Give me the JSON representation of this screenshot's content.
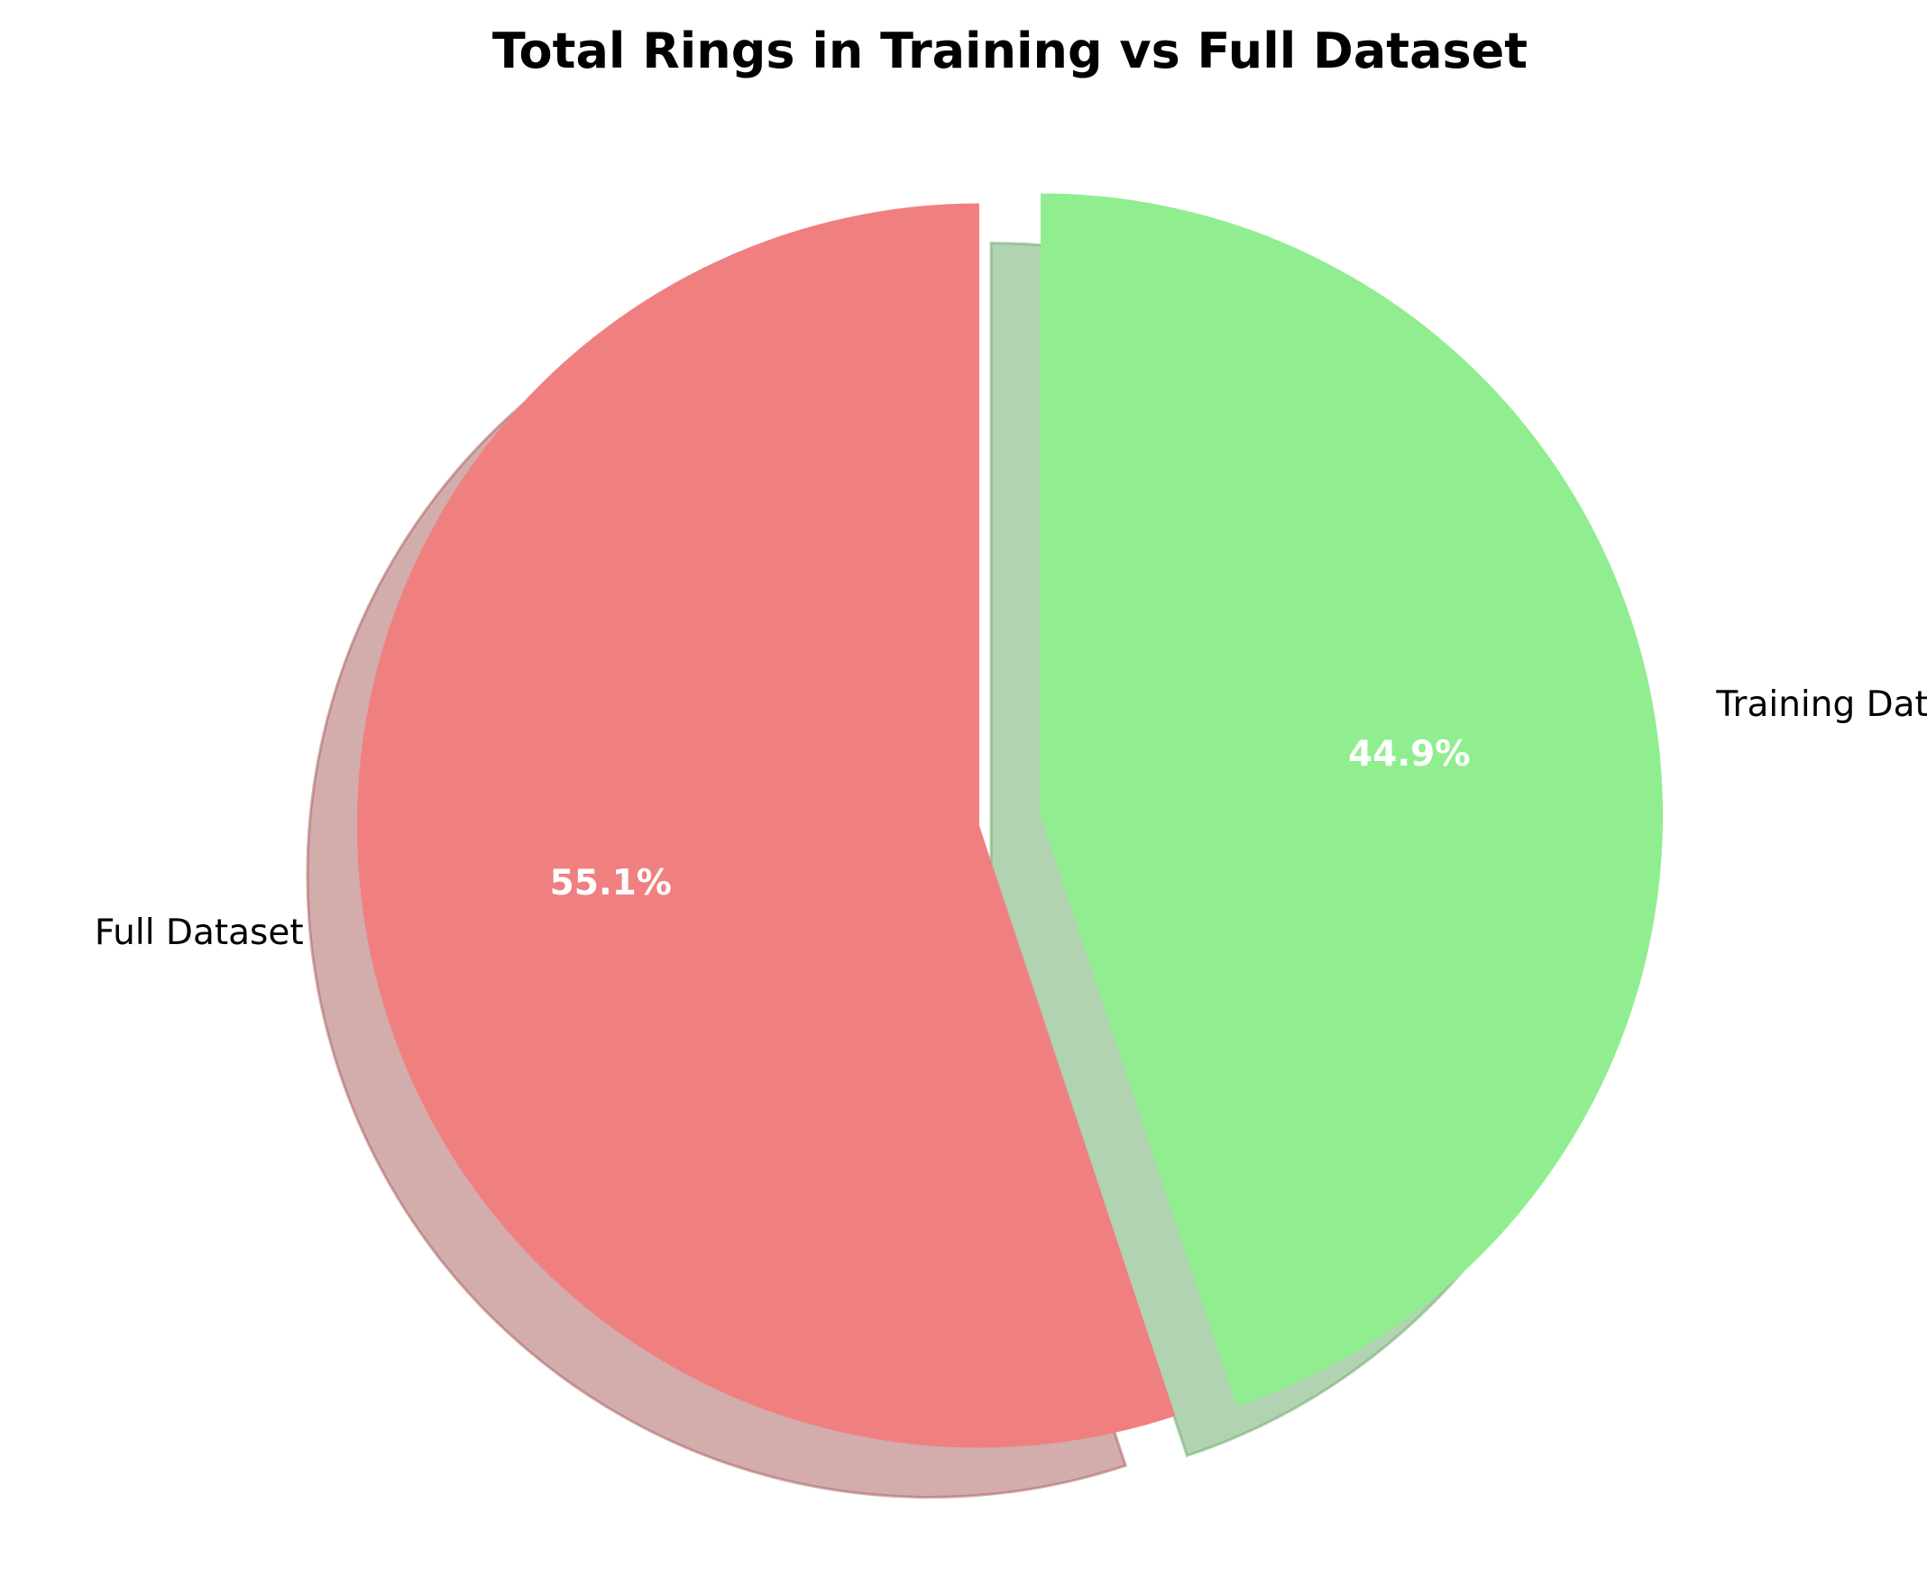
{
  "chart_data": {
    "type": "pie",
    "title": "Total Rings in Training vs Full Dataset",
    "start_angle_deg": 90,
    "direction": "clockwise",
    "shadow": true,
    "explode": [
      0.05,
      0.05
    ],
    "slices": [
      {
        "label": "Training Dataset",
        "percent": 44.9,
        "pct_label": "44.9%",
        "color": "#90ee90"
      },
      {
        "label": "Full Dataset",
        "percent": 55.1,
        "pct_label": "55.1%",
        "color": "#f08080"
      }
    ]
  }
}
